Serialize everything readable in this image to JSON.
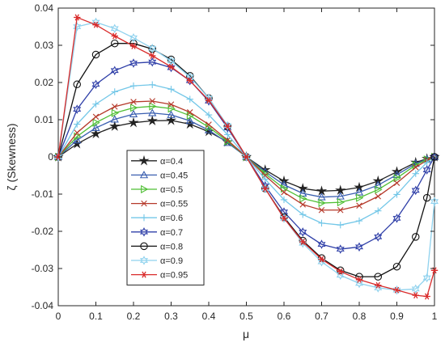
{
  "chart_data": {
    "type": "line",
    "title": "",
    "xlabel": "μ",
    "ylabel": "ζ (Skewness)",
    "xlim": [
      0,
      1
    ],
    "ylim": [
      -0.04,
      0.04
    ],
    "x_ticks": [
      "0",
      "0.1",
      "0.2",
      "0.3",
      "0.4",
      "0.5",
      "0.6",
      "0.7",
      "0.8",
      "0.9",
      "1"
    ],
    "y_ticks": [
      "0.04",
      "0.03",
      "0.02",
      "0.01",
      "0",
      "-0.01",
      "-0.02",
      "-0.03",
      "-0.04"
    ],
    "grid": false,
    "legend_position": "center-left",
    "x": [
      0,
      0.05,
      0.1,
      0.15,
      0.2,
      0.25,
      0.3,
      0.35,
      0.4,
      0.45,
      0.5,
      0.55,
      0.6,
      0.65,
      0.7,
      0.75,
      0.8,
      0.85,
      0.9,
      0.95,
      0.98,
      1
    ],
    "series": [
      {
        "name": "α=0.4",
        "color": "#222222",
        "marker": "star",
        "values": [
          0,
          0.0035,
          0.0062,
          0.0082,
          0.0092,
          0.0097,
          0.0098,
          0.0088,
          0.0068,
          0.004,
          0.0,
          -0.0035,
          -0.0065,
          -0.0085,
          -0.0092,
          -0.009,
          -0.0082,
          -0.0065,
          -0.004,
          -0.0015,
          -0.0005,
          0
        ]
      },
      {
        "name": "α=0.45",
        "color": "#3a5fb0",
        "marker": "triangle-up",
        "values": [
          0,
          0.0045,
          0.0078,
          0.0101,
          0.0115,
          0.0118,
          0.0113,
          0.0097,
          0.0072,
          0.0038,
          0.0,
          -0.004,
          -0.0075,
          -0.0098,
          -0.0108,
          -0.0106,
          -0.0095,
          -0.0076,
          -0.0048,
          -0.0018,
          -0.0006,
          0
        ]
      },
      {
        "name": "α=0.5",
        "color": "#4fbf34",
        "marker": "triangle-right",
        "values": [
          0,
          0.0055,
          0.0092,
          0.0118,
          0.0132,
          0.0136,
          0.013,
          0.0111,
          0.008,
          0.0042,
          0.0,
          -0.0045,
          -0.0085,
          -0.0112,
          -0.0124,
          -0.0122,
          -0.011,
          -0.0088,
          -0.0057,
          -0.0022,
          -0.0007,
          0
        ]
      },
      {
        "name": "α=0.55",
        "color": "#b5392a",
        "marker": "x",
        "values": [
          0,
          0.0065,
          0.0108,
          0.0135,
          0.0148,
          0.015,
          0.0141,
          0.012,
          0.0087,
          0.0045,
          0.0,
          -0.005,
          -0.0095,
          -0.0128,
          -0.0143,
          -0.0143,
          -0.0131,
          -0.0106,
          -0.007,
          -0.0028,
          -0.0009,
          0
        ]
      },
      {
        "name": "α=0.6",
        "color": "#73c7e8",
        "marker": "plus",
        "values": [
          0,
          0.0088,
          0.0142,
          0.0175,
          0.0191,
          0.0194,
          0.0182,
          0.0155,
          0.0113,
          0.006,
          0.0,
          -0.006,
          -0.0115,
          -0.0155,
          -0.0178,
          -0.0183,
          -0.0172,
          -0.0145,
          -0.0101,
          -0.0045,
          -0.0015,
          0
        ]
      },
      {
        "name": "α=0.7",
        "color": "#2f3fa8",
        "marker": "hexagram",
        "values": [
          0,
          0.0128,
          0.0195,
          0.0232,
          0.0252,
          0.0255,
          0.024,
          0.0205,
          0.015,
          0.0078,
          0.0,
          -0.0078,
          -0.0148,
          -0.0202,
          -0.0235,
          -0.0248,
          -0.0242,
          -0.0215,
          -0.0165,
          -0.009,
          -0.0035,
          0
        ]
      },
      {
        "name": "α=0.8",
        "color": "#111111",
        "marker": "circle",
        "values": [
          0,
          0.0195,
          0.0275,
          0.0305,
          0.0305,
          0.029,
          0.0262,
          0.0218,
          0.0158,
          0.0082,
          0.0,
          -0.0085,
          -0.0162,
          -0.0225,
          -0.0272,
          -0.0305,
          -0.0322,
          -0.0322,
          -0.0295,
          -0.0215,
          -0.011,
          0
        ]
      },
      {
        "name": "α=0.9",
        "color": "#8fd2ee",
        "marker": "hexagram",
        "values": [
          0,
          0.035,
          0.0362,
          0.0345,
          0.032,
          0.0292,
          0.0258,
          0.0215,
          0.0158,
          0.0084,
          0.0,
          -0.0085,
          -0.0165,
          -0.0232,
          -0.0282,
          -0.0318,
          -0.034,
          -0.0352,
          -0.0358,
          -0.0355,
          -0.0325,
          -0.012
        ]
      },
      {
        "name": "α=0.95",
        "color": "#d92b2b",
        "marker": "asterisk",
        "values": [
          0,
          0.0375,
          0.0355,
          0.0325,
          0.0298,
          0.0272,
          0.0242,
          0.0205,
          0.0152,
          0.0082,
          0.0,
          -0.0085,
          -0.0165,
          -0.0228,
          -0.0275,
          -0.0308,
          -0.033,
          -0.0345,
          -0.0358,
          -0.0372,
          -0.0375,
          -0.0305
        ]
      }
    ]
  }
}
